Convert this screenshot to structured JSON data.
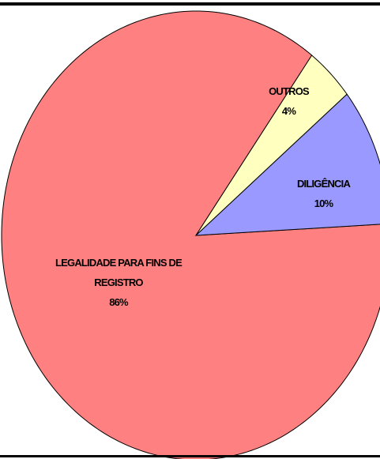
{
  "chart_data": {
    "type": "pie",
    "categories": [
      "DILIGÊNCIA",
      "OUTROS",
      "LEGALIDADE PARA FINS DE REGISTRO"
    ],
    "values": [
      10,
      4,
      86
    ],
    "value_labels": [
      "10%",
      "4%",
      "86%"
    ],
    "colors": [
      "#9999ff",
      "#ffffc0",
      "#ff8080"
    ]
  }
}
